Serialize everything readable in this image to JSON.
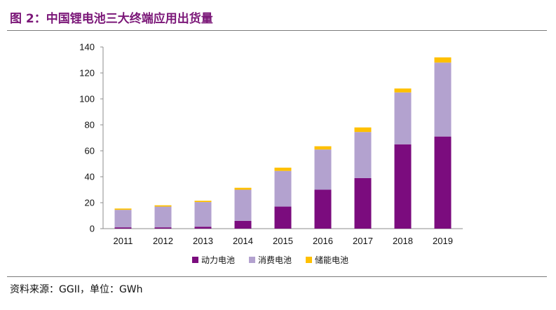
{
  "figure": {
    "title": "图 2：中国锂电池三大终端应用出货量",
    "source": "资料来源：GGII，单位：GWh"
  },
  "colors": {
    "title": "#7b1778",
    "power": "#7b0c7e",
    "consumer": "#b3a2cf",
    "storage": "#ffc000"
  },
  "chart_data": {
    "type": "bar",
    "stacked": true,
    "categories": [
      "2011",
      "2012",
      "2013",
      "2014",
      "2015",
      "2016",
      "2017",
      "2018",
      "2019"
    ],
    "series": [
      {
        "name": "动力电池",
        "values": [
          1,
          1,
          1.5,
          6,
          17,
          30,
          39,
          65,
          71
        ]
      },
      {
        "name": "消费电池",
        "values": [
          13.5,
          16,
          19,
          24,
          27.5,
          31,
          35.5,
          40,
          57
        ]
      },
      {
        "name": "储能电池",
        "values": [
          1,
          1,
          1,
          1.5,
          2.5,
          2.5,
          3.5,
          3,
          4
        ]
      }
    ],
    "ylim": [
      0,
      140
    ],
    "yticks": [
      0,
      20,
      40,
      60,
      80,
      100,
      120,
      140
    ],
    "grid": false,
    "legend_position": "bottom"
  }
}
